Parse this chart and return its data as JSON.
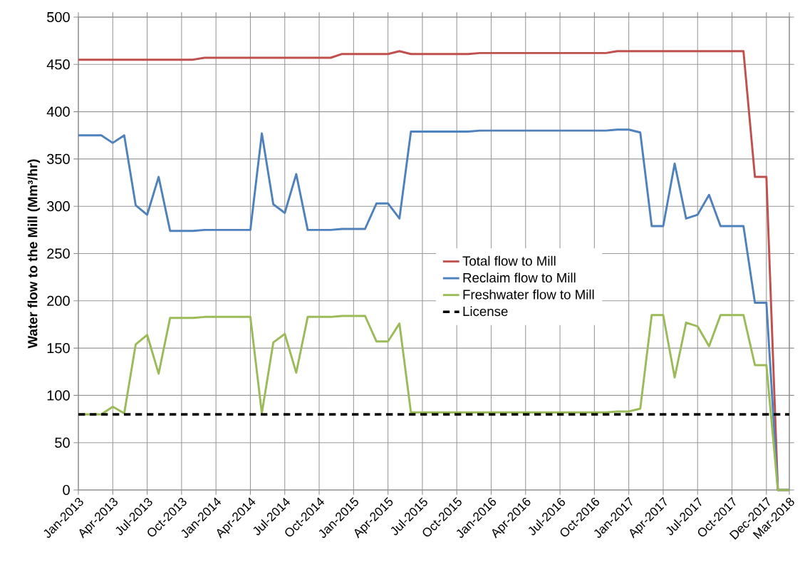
{
  "chart_data": {
    "type": "line",
    "ylabel": "Water flow to the Mill (Mm³/hr)",
    "categories": [
      "Jan-2013",
      null,
      null,
      "Apr-2013",
      null,
      null,
      "Jul-2013",
      null,
      null,
      "Oct-2013",
      null,
      null,
      "Jan-2014",
      null,
      null,
      "Apr-2014",
      null,
      null,
      "Jul-2014",
      null,
      null,
      "Oct-2014",
      null,
      null,
      "Jan-2015",
      null,
      null,
      "Apr-2015",
      null,
      null,
      "Jul-2015",
      null,
      null,
      "Oct-2015",
      null,
      null,
      "Jan-2016",
      null,
      null,
      "Apr-2016",
      null,
      null,
      "Jul-2016",
      null,
      null,
      "Oct-2016",
      null,
      null,
      "Jan-2017",
      null,
      null,
      "Apr-2017",
      null,
      null,
      "Jul-2017",
      null,
      null,
      "Oct-2017",
      null,
      null,
      "Dec-2017",
      null,
      "Mar-2018"
    ],
    "series": [
      {
        "name": "Total flow to Mill",
        "color": "#c0504d",
        "values": [
          455,
          455,
          455,
          455,
          455,
          455,
          455,
          455,
          455,
          455,
          455,
          457,
          457,
          457,
          457,
          457,
          457,
          457,
          457,
          457,
          457,
          457,
          457,
          461,
          461,
          461,
          461,
          461,
          464,
          461,
          461,
          461,
          461,
          461,
          461,
          462,
          462,
          462,
          462,
          462,
          462,
          462,
          462,
          462,
          462,
          462,
          462,
          464,
          464,
          464,
          464,
          464,
          464,
          464,
          464,
          464,
          464,
          464,
          464,
          331,
          331,
          0,
          0
        ]
      },
      {
        "name": "Reclaim flow to Mill",
        "color": "#4f81bd",
        "values": [
          375,
          375,
          375,
          367,
          375,
          301,
          291,
          331,
          274,
          274,
          274,
          275,
          275,
          275,
          275,
          275,
          377,
          302,
          293,
          334,
          275,
          275,
          275,
          276,
          276,
          276,
          303,
          303,
          287,
          379,
          379,
          379,
          379,
          379,
          379,
          380,
          380,
          380,
          380,
          380,
          380,
          380,
          380,
          380,
          380,
          380,
          380,
          381,
          381,
          378,
          279,
          279,
          345,
          287,
          291,
          312,
          279,
          279,
          279,
          198,
          198,
          0,
          0
        ]
      },
      {
        "name": "Freshwater flow to Mill",
        "color": "#9bbb59",
        "values": [
          80,
          80,
          80,
          88,
          81,
          154,
          164,
          123,
          182,
          182,
          182,
          183,
          183,
          183,
          183,
          183,
          81,
          156,
          165,
          124,
          183,
          183,
          183,
          184,
          184,
          184,
          157,
          157,
          176,
          82,
          82,
          82,
          82,
          82,
          82,
          82,
          82,
          82,
          82,
          82,
          82,
          82,
          82,
          82,
          82,
          82,
          82,
          83,
          83,
          86,
          185,
          185,
          119,
          177,
          173,
          152,
          185,
          185,
          185,
          132,
          132,
          0,
          0
        ]
      }
    ],
    "ref_lines": [
      {
        "axis": "y",
        "value": 80,
        "label": "License",
        "color": "#000000",
        "line_style": "dashed"
      }
    ],
    "ylim": [
      0,
      500
    ],
    "yticks": [
      0,
      50,
      100,
      150,
      200,
      250,
      300,
      350,
      400,
      450,
      500
    ],
    "grid": true,
    "legend": "center",
    "marker": "none",
    "line_style": "solid"
  }
}
